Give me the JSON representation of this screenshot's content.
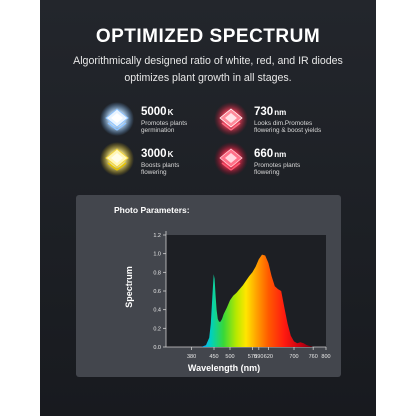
{
  "header": {
    "title": "OPTIMIZED SPECTRUM",
    "subtitle_line1": "Algorithmically designed ratio of white, red, and IR diodes",
    "subtitle_line2": "optimizes plant growth in all stages."
  },
  "leds": [
    {
      "value": "5000",
      "unit": "K",
      "desc1": "Promotes plants",
      "desc2": "germination",
      "icon": "cool-white-led-chip-icon",
      "color": "#cfe9ff"
    },
    {
      "value": "730",
      "unit": "nm",
      "desc1": "Looks dim.Promotes",
      "desc2": "flowering & boost yields",
      "icon": "far-red-led-chip-icon",
      "color": "#ff5a6e"
    },
    {
      "value": "3000",
      "unit": "K",
      "desc1": "Boosts plants",
      "desc2": "flowering",
      "icon": "warm-white-led-chip-icon",
      "color": "#fff29a"
    },
    {
      "value": "660",
      "unit": "nm",
      "desc1": "Promotes plants",
      "desc2": "flowering",
      "icon": "deep-red-led-chip-icon",
      "color": "#ff4a64"
    }
  ],
  "chart_heading": "Photo Parameters:",
  "chart_data": {
    "type": "area",
    "title": "",
    "xlabel": "Wavelength (nm)",
    "ylabel": "Spectrum",
    "xlim": [
      300,
      800
    ],
    "ylim": [
      0,
      1.2
    ],
    "xticks": [
      380,
      450,
      500,
      570,
      590,
      620,
      700,
      760,
      800
    ],
    "yticks": [
      0.0,
      0.2,
      0.4,
      0.6,
      0.8,
      1.0,
      1.2
    ],
    "ytick_labels": [
      "0.0",
      "0.2",
      "0.4",
      "0.6",
      "0.8",
      "1.0",
      "1.2"
    ],
    "grid": false,
    "series": [
      {
        "x": [
          410,
          425,
          435,
          440,
          445,
          449,
          452,
          455,
          458,
          462,
          466,
          470,
          475,
          480,
          490,
          500,
          510,
          520,
          530,
          540,
          550,
          560,
          570,
          580,
          590,
          600,
          610,
          620,
          630,
          640,
          650,
          660,
          670,
          680,
          690,
          700,
          710,
          720,
          730,
          740,
          750,
          760
        ],
        "y": [
          0.0,
          0.02,
          0.1,
          0.25,
          0.55,
          0.78,
          0.73,
          0.55,
          0.4,
          0.3,
          0.27,
          0.27,
          0.3,
          0.35,
          0.42,
          0.5,
          0.55,
          0.58,
          0.62,
          0.66,
          0.71,
          0.76,
          0.8,
          0.86,
          0.94,
          0.99,
          0.98,
          0.9,
          0.76,
          0.65,
          0.62,
          0.6,
          0.42,
          0.25,
          0.12,
          0.06,
          0.04,
          0.05,
          0.04,
          0.02,
          0.01,
          0.0
        ]
      }
    ]
  }
}
